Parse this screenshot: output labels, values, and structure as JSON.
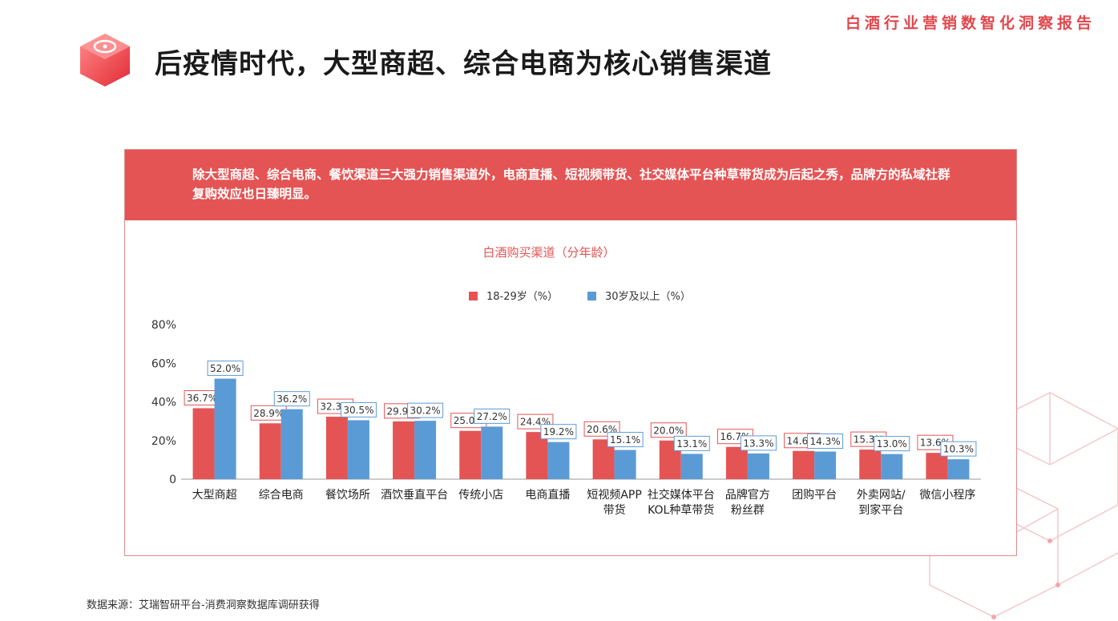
{
  "report_tag": "白酒行业营销数智化洞察报告",
  "page_title": "后疫情时代，大型商超、综合电商为核心销售渠道",
  "banner_text": "除大型商超、综合电商、餐饮渠道三大强力销售渠道外，电商直播、短视频带货、社交媒体平台种草带货成为后起之秀，品牌方的私域社群复购效应也日臻明显。",
  "source_note": "数据来源：艾瑞智研平台-消费洞察数据库调研获得",
  "colors": {
    "accent": "#e0474c",
    "series_young": "#e45454",
    "series_old": "#5b9bd5"
  },
  "chart_data": {
    "type": "bar",
    "title": "白酒购买渠道（分年龄）",
    "ylim": [
      0,
      80
    ],
    "y_ticks": [
      "0",
      "20%",
      "40%",
      "60%",
      "80%"
    ],
    "legend_position": "top-center",
    "grid": false,
    "categories": [
      [
        "大型商超"
      ],
      [
        "综合电商"
      ],
      [
        "餐饮场所"
      ],
      [
        "酒饮垂直平台"
      ],
      [
        "传统小店"
      ],
      [
        "电商直播"
      ],
      [
        "短视频APP",
        "带货"
      ],
      [
        "社交媒体平台",
        "KOL种草带货"
      ],
      [
        "品牌官方",
        "粉丝群"
      ],
      [
        "团购平台"
      ],
      [
        "外卖网站/",
        "到家平台"
      ],
      [
        "微信小程序"
      ]
    ],
    "series": [
      {
        "name": "18-29岁（%）",
        "color": "#e45454",
        "values": [
          36.7,
          28.9,
          32.3,
          29.9,
          25.0,
          24.4,
          20.6,
          20.0,
          16.7,
          14.6,
          15.3,
          13.6
        ],
        "labels": [
          "36.7%",
          "28.9%",
          "32.3%",
          "29.9%",
          "25.0%",
          "24.4%",
          "20.6%",
          "20.0%",
          "16.7%",
          "14.6%",
          "15.3%",
          "13.6%"
        ]
      },
      {
        "name": "30岁及以上（%）",
        "color": "#5b9bd5",
        "values": [
          52.0,
          36.2,
          30.5,
          30.2,
          27.2,
          19.2,
          15.1,
          13.1,
          13.3,
          14.3,
          13.0,
          10.3
        ],
        "labels": [
          "52.0%",
          "36.2%",
          "30.5%",
          "30.2%",
          "27.2%",
          "19.2%",
          "15.1%",
          "13.1%",
          "13.3%",
          "14.3%",
          "13.0%",
          "10.3%"
        ]
      }
    ]
  }
}
